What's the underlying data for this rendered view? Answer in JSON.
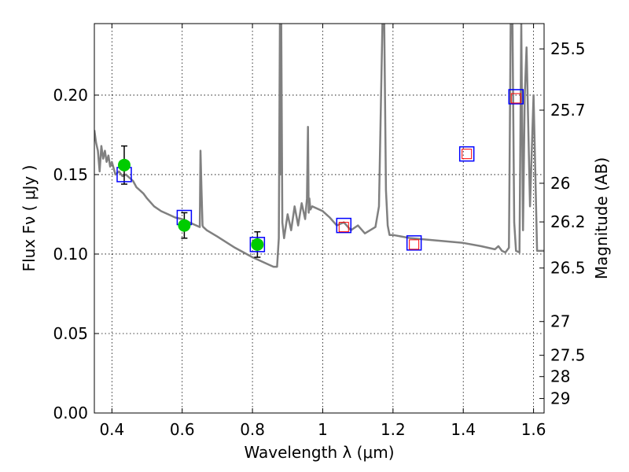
{
  "chart_data": {
    "type": "scatter",
    "title": "",
    "xlabel": "Wavelength  λ (μm)",
    "ylabel": "Flux  Fν  ( μJy )",
    "ylabel2": "Magnitude (AB)",
    "xlim": [
      0.35,
      1.63
    ],
    "ylim": [
      0.0,
      0.245
    ],
    "grid": true,
    "x_ticks": [
      0.4,
      0.6,
      0.8,
      1.0,
      1.2,
      1.4,
      1.6
    ],
    "x_tick_labels": [
      "0.4",
      "0.6",
      "0.8",
      "1",
      "1.2",
      "1.4",
      "1.6"
    ],
    "y_ticks": [
      0.0,
      0.05,
      0.1,
      0.15,
      0.2
    ],
    "y_tick_labels": [
      "0.00",
      "0.05",
      "0.10",
      "0.15",
      "0.20"
    ],
    "mag_ticks": [
      25.5,
      25.7,
      26,
      26.2,
      26.5,
      27,
      27.5,
      28,
      29
    ],
    "mag_tick_labels": [
      "25.5",
      "25.7",
      "26",
      "26.2",
      "26.5",
      "27",
      "27.5",
      "28",
      "29"
    ],
    "series": [
      {
        "kind": "observed",
        "marker": "circle",
        "color": "#00cc00",
        "x": [
          0.435,
          0.606,
          0.814
        ],
        "y": [
          0.156,
          0.118,
          0.106
        ],
        "yerr": [
          0.012,
          0.008,
          0.008
        ]
      },
      {
        "kind": "model_photometry",
        "marker": "square-open",
        "color": "#0000ff",
        "x": [
          0.435,
          0.606,
          0.814,
          1.06,
          1.26,
          1.41,
          1.55
        ],
        "y": [
          0.15,
          0.123,
          0.106,
          0.118,
          0.107,
          0.163,
          0.199
        ]
      },
      {
        "kind": "nir_photometry",
        "marker": "square-open-small",
        "color": "#ff0000",
        "x": [
          1.06,
          1.26,
          1.41,
          1.55
        ],
        "y": [
          0.117,
          0.106,
          0.163,
          0.198
        ]
      },
      {
        "kind": "sed_model",
        "line_color": "#808080",
        "x": [
          0.35,
          0.355,
          0.36,
          0.365,
          0.37,
          0.375,
          0.38,
          0.385,
          0.39,
          0.395,
          0.4,
          0.41,
          0.42,
          0.43,
          0.44,
          0.45,
          0.46,
          0.47,
          0.48,
          0.49,
          0.5,
          0.52,
          0.54,
          0.56,
          0.58,
          0.6,
          0.62,
          0.64,
          0.65,
          0.652,
          0.655,
          0.658,
          0.66,
          0.67,
          0.7,
          0.75,
          0.8,
          0.85,
          0.86,
          0.87,
          0.875,
          0.878,
          0.88,
          0.882,
          0.885,
          0.89,
          0.9,
          0.91,
          0.92,
          0.93,
          0.94,
          0.95,
          0.955,
          0.958,
          0.96,
          0.962,
          0.965,
          0.97,
          1.0,
          1.02,
          1.04,
          1.06,
          1.08,
          1.1,
          1.12,
          1.15,
          1.16,
          1.17,
          1.175,
          1.18,
          1.185,
          1.19,
          1.2,
          1.25,
          1.3,
          1.35,
          1.4,
          1.45,
          1.49,
          1.5,
          1.51,
          1.52,
          1.53,
          1.535,
          1.54,
          1.545,
          1.55,
          1.56,
          1.565,
          1.57,
          1.575,
          1.58,
          1.59,
          1.6,
          1.61,
          1.62,
          1.63
        ],
        "y": [
          0.178,
          0.17,
          0.165,
          0.152,
          0.168,
          0.16,
          0.165,
          0.158,
          0.162,
          0.155,
          0.158,
          0.15,
          0.152,
          0.149,
          0.15,
          0.148,
          0.146,
          0.142,
          0.14,
          0.138,
          0.135,
          0.13,
          0.127,
          0.125,
          0.123,
          0.122,
          0.12,
          0.118,
          0.117,
          0.165,
          0.14,
          0.118,
          0.117,
          0.115,
          0.111,
          0.104,
          0.098,
          0.093,
          0.092,
          0.092,
          0.11,
          0.245,
          0.15,
          0.245,
          0.12,
          0.11,
          0.125,
          0.115,
          0.13,
          0.118,
          0.132,
          0.122,
          0.135,
          0.18,
          0.126,
          0.135,
          0.128,
          0.13,
          0.127,
          0.123,
          0.118,
          0.12,
          0.115,
          0.118,
          0.113,
          0.117,
          0.13,
          0.245,
          0.245,
          0.14,
          0.118,
          0.112,
          0.112,
          0.11,
          0.109,
          0.108,
          0.107,
          0.105,
          0.103,
          0.105,
          0.102,
          0.101,
          0.104,
          0.245,
          0.245,
          0.12,
          0.102,
          0.101,
          0.245,
          0.115,
          0.2,
          0.23,
          0.13,
          0.2,
          0.102,
          0.102,
          0.102
        ]
      }
    ]
  }
}
